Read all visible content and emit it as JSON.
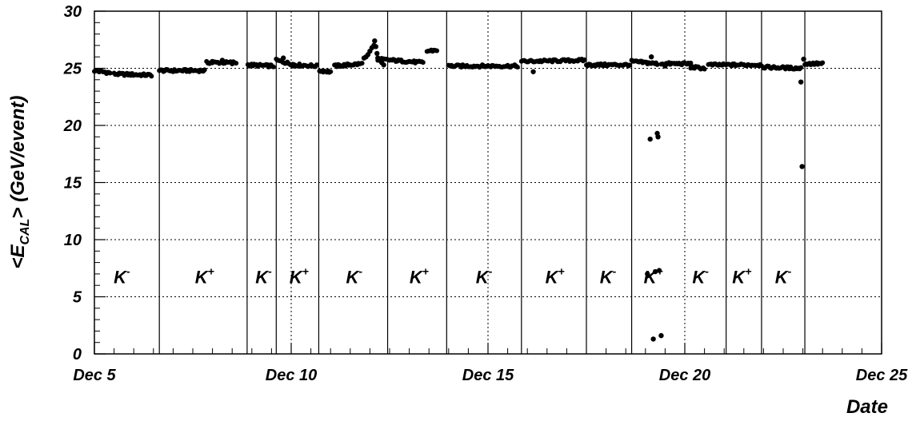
{
  "chart_data": {
    "type": "scatter",
    "title": "",
    "xlabel": "Date",
    "ylabel": "<E_CAL> (GeV/event)",
    "ylabel_parts": {
      "open": "<E",
      "sub": "CAL",
      "close": "> (GeV/event)"
    },
    "x_unit": "day of December",
    "xlim": [
      5,
      25
    ],
    "ylim": [
      0,
      30
    ],
    "x_ticks": [
      {
        "value": 5,
        "label": "Dec 5"
      },
      {
        "value": 10,
        "label": "Dec 10"
      },
      {
        "value": 15,
        "label": "Dec 15"
      },
      {
        "value": 20,
        "label": "Dec 20"
      },
      {
        "value": 25,
        "label": "Dec 25"
      }
    ],
    "y_ticks": [
      {
        "value": 0,
        "label": "0"
      },
      {
        "value": 5,
        "label": "5"
      },
      {
        "value": 10,
        "label": "10"
      },
      {
        "value": 15,
        "label": "15"
      },
      {
        "value": 20,
        "label": "20"
      },
      {
        "value": 25,
        "label": "25"
      },
      {
        "value": 30,
        "label": "30"
      }
    ],
    "grid": "dotted at major ticks",
    "run_boundaries": [
      6.65,
      8.88,
      9.62,
      10.7,
      12.45,
      13.95,
      15.85,
      17.5,
      18.65,
      21.05,
      21.95,
      23.05
    ],
    "run_labels": [
      {
        "x": 5.7,
        "base": "K",
        "sign": "-"
      },
      {
        "x": 7.8,
        "base": "K",
        "sign": "+"
      },
      {
        "x": 9.3,
        "base": "K",
        "sign": "-"
      },
      {
        "x": 10.2,
        "base": "K",
        "sign": "+"
      },
      {
        "x": 11.6,
        "base": "K",
        "sign": "-"
      },
      {
        "x": 13.25,
        "base": "K",
        "sign": "+"
      },
      {
        "x": 14.9,
        "base": "K",
        "sign": "-"
      },
      {
        "x": 16.7,
        "base": "K",
        "sign": "+"
      },
      {
        "x": 18.05,
        "base": "K",
        "sign": "-"
      },
      {
        "x": 19.2,
        "base": "K",
        "sign": "+"
      },
      {
        "x": 20.4,
        "base": "K",
        "sign": "-"
      },
      {
        "x": 21.45,
        "base": "K",
        "sign": "+"
      },
      {
        "x": 22.5,
        "base": "K",
        "sign": "-"
      }
    ],
    "series": [
      {
        "segments": [
          {
            "x0": 5.0,
            "x1": 5.4,
            "y0": 24.8,
            "y1": 24.6,
            "n": 14
          },
          {
            "x0": 5.5,
            "x1": 6.45,
            "y0": 24.5,
            "y1": 24.4,
            "n": 30
          },
          {
            "x0": 6.65,
            "x1": 7.8,
            "y0": 24.8,
            "y1": 24.8,
            "n": 34
          },
          {
            "x0": 7.85,
            "x1": 8.6,
            "y0": 25.5,
            "y1": 25.5,
            "n": 22
          },
          {
            "x0": 8.9,
            "x1": 9.55,
            "y0": 25.3,
            "y1": 25.2,
            "n": 22
          },
          {
            "x0": 9.62,
            "x1": 10.1,
            "y0": 25.7,
            "y1": 25.3,
            "n": 18
          },
          {
            "x0": 10.1,
            "x1": 10.65,
            "y0": 25.3,
            "y1": 25.2,
            "n": 16
          },
          {
            "x0": 10.72,
            "x1": 11.0,
            "y0": 24.8,
            "y1": 24.7,
            "n": 10
          },
          {
            "x0": 11.1,
            "x1": 11.8,
            "y0": 25.2,
            "y1": 25.4,
            "n": 24
          },
          {
            "x0": 12.2,
            "x1": 13.35,
            "y0": 25.8,
            "y1": 25.5,
            "n": 36
          },
          {
            "x0": 13.45,
            "x1": 13.7,
            "y0": 26.5,
            "y1": 26.6,
            "n": 8
          },
          {
            "x0": 14.0,
            "x1": 15.75,
            "y0": 25.2,
            "y1": 25.2,
            "n": 50
          },
          {
            "x0": 15.85,
            "x1": 17.45,
            "y0": 25.6,
            "y1": 25.7,
            "n": 48
          },
          {
            "x0": 17.5,
            "x1": 18.6,
            "y0": 25.3,
            "y1": 25.3,
            "n": 34
          },
          {
            "x0": 18.65,
            "x1": 19.3,
            "y0": 25.6,
            "y1": 25.4,
            "n": 22
          },
          {
            "x0": 19.4,
            "x1": 20.15,
            "y0": 25.4,
            "y1": 25.4,
            "n": 24
          },
          {
            "x0": 20.15,
            "x1": 20.5,
            "y0": 25.1,
            "y1": 25.0,
            "n": 12
          },
          {
            "x0": 20.6,
            "x1": 21.95,
            "y0": 25.3,
            "y1": 25.3,
            "n": 40
          },
          {
            "x0": 22.0,
            "x1": 22.95,
            "y0": 25.1,
            "y1": 25.0,
            "n": 30
          },
          {
            "x0": 23.05,
            "x1": 23.5,
            "y0": 25.4,
            "y1": 25.4,
            "n": 16
          }
        ],
        "points": [
          [
            8.0,
            25.6
          ],
          [
            8.25,
            25.7
          ],
          [
            8.5,
            25.4
          ],
          [
            9.8,
            25.9
          ],
          [
            10.05,
            25.2
          ],
          [
            11.7,
            25.4
          ],
          [
            11.85,
            25.9
          ],
          [
            11.9,
            26.0
          ],
          [
            11.95,
            26.2
          ],
          [
            12.0,
            26.5
          ],
          [
            12.05,
            26.8
          ],
          [
            12.1,
            27.0
          ],
          [
            12.12,
            27.4
          ],
          [
            12.15,
            26.9
          ],
          [
            12.18,
            26.3
          ],
          [
            12.2,
            25.9
          ],
          [
            12.25,
            25.7
          ],
          [
            12.3,
            25.5
          ],
          [
            12.35,
            25.3
          ],
          [
            16.15,
            24.7
          ],
          [
            19.12,
            18.8
          ],
          [
            19.15,
            26.0
          ],
          [
            19.2,
            1.3
          ],
          [
            19.25,
            7.2
          ],
          [
            19.3,
            19.3
          ],
          [
            19.32,
            19.0
          ],
          [
            19.35,
            7.3
          ],
          [
            19.4,
            1.6
          ],
          [
            19.05,
            7.0
          ],
          [
            19.5,
            25.2
          ],
          [
            22.95,
            23.8
          ],
          [
            22.98,
            16.4
          ],
          [
            23.02,
            25.8
          ]
        ]
      }
    ]
  }
}
